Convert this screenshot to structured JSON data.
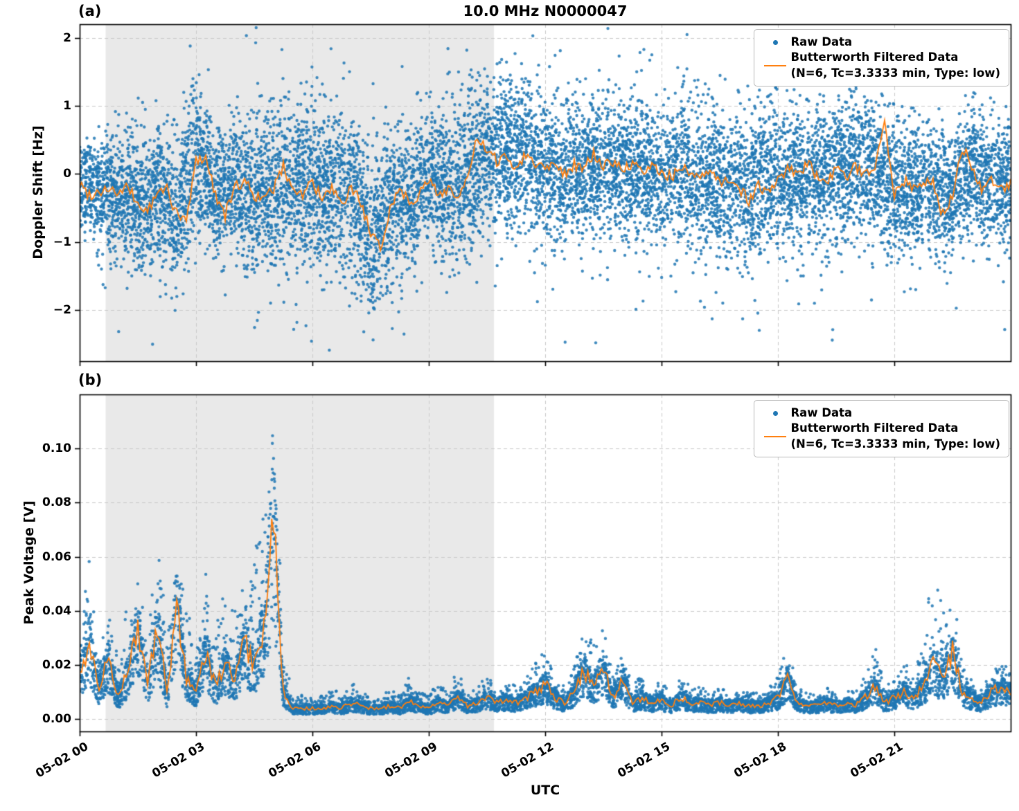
{
  "chart_data": [
    {
      "type": "scatter",
      "panel_label": "(a)",
      "title": "10.0 MHz N0000047",
      "xlabel": "",
      "ylabel": "Doppler Shift [Hz]",
      "xlim_hours": [
        0,
        24
      ],
      "ylim": [
        -2.75,
        2.2
      ],
      "xticks_hours": [
        0,
        3,
        6,
        9,
        12,
        15,
        18,
        21
      ],
      "xtick_labels": [
        "05-02 00",
        "05-02 03",
        "05-02 06",
        "05-02 09",
        "05-02 12",
        "05-02 15",
        "05-02 18",
        "05-02 21"
      ],
      "yticks": [
        2,
        1,
        0,
        -1,
        -2
      ],
      "ytick_labels": [
        "2",
        "1",
        "0",
        "−1",
        "−2"
      ],
      "grid": true,
      "shaded_region_hours": [
        0.67,
        10.68
      ],
      "shade_color": "#e9e9e9",
      "legend": {
        "position": "upper right",
        "raw": "Raw Data",
        "filtered": "Butterworth Filtered Data",
        "filtered_params": "(N=6, Tc=3.3333 min, Type: low)"
      },
      "colors": {
        "raw": "#1f77b4",
        "filtered": "#ff7f0e"
      },
      "series": {
        "raw_scatter_envelope": {
          "t_step_hours": 0.5,
          "mean_hz": [
            -0.15,
            -0.25,
            -0.3,
            -0.45,
            -0.3,
            -0.6,
            0.2,
            -0.3,
            -0.2,
            -0.3,
            -0.2,
            -0.2,
            -0.1,
            -0.2,
            -0.2,
            -0.9,
            -0.5,
            -0.4,
            -0.1,
            -0.2,
            -0.1,
            0.3,
            0.25,
            0.3,
            0.1,
            0,
            0.05,
            0.1,
            0.05,
            0,
            0.05,
            0.1,
            -0.1,
            -0.15,
            -0.2,
            -0.15,
            -0.1,
            -0.05,
            0,
            0.05,
            0.1,
            0.15,
            -0.3,
            -0.2,
            -0.15,
            -0.3,
            0.1,
            -0.1,
            -0.15
          ],
          "spread_hz": [
            0.35,
            0.35,
            0.45,
            0.5,
            0.5,
            0.55,
            0.55,
            0.45,
            0.45,
            0.6,
            0.65,
            0.65,
            0.6,
            0.6,
            0.6,
            0.6,
            0.55,
            0.55,
            0.55,
            0.55,
            0.55,
            0.55,
            0.55,
            0.55,
            0.55,
            0.5,
            0.5,
            0.5,
            0.5,
            0.5,
            0.5,
            0.5,
            0.55,
            0.55,
            0.55,
            0.55,
            0.55,
            0.5,
            0.5,
            0.5,
            0.5,
            0.5,
            0.5,
            0.5,
            0.45,
            0.45,
            0.45,
            0.45,
            0.45
          ]
        },
        "filtered_line": {
          "t_step_hours": 0.25,
          "values_hz": [
            -0.15,
            -0.3,
            -0.25,
            -0.2,
            -0.3,
            -0.2,
            -0.45,
            -0.55,
            -0.3,
            -0.2,
            -0.6,
            -0.7,
            0.2,
            0.25,
            -0.3,
            -0.6,
            -0.2,
            -0.1,
            -0.3,
            -0.4,
            -0.2,
            0.1,
            -0.2,
            -0.3,
            -0.1,
            -0.4,
            -0.2,
            -0.5,
            -0.2,
            -0.4,
            -0.9,
            -1.1,
            -0.5,
            -0.2,
            -0.4,
            -0.3,
            -0.1,
            -0.3,
            -0.2,
            -0.35,
            -0.1,
            0.55,
            0.3,
            0.2,
            0.25,
            0.1,
            0.3,
            0.15,
            0.1,
            0.2,
            0,
            0.15,
            0.05,
            0.3,
            0.1,
            0.2,
            0.05,
            0.15,
            0,
            0.1,
            0.05,
            -0.05,
            0.1,
            0,
            -0.1,
            0.05,
            -0.15,
            -0.05,
            -0.2,
            -0.4,
            -0.15,
            -0.3,
            -0.1,
            0.1,
            -0.05,
            0.15,
            0,
            -0.1,
            0.05,
            -0.05,
            0.1,
            0,
            0.15,
            0.8,
            -0.3,
            -0.1,
            -0.2,
            -0.1,
            -0.15,
            -0.6,
            -0.3,
            0.4,
            0.1,
            -0.2,
            -0.1,
            -0.25,
            -0.15
          ]
        }
      }
    },
    {
      "type": "scatter",
      "panel_label": "(b)",
      "title": "",
      "xlabel": "UTC",
      "ylabel": "Peak Voltage [V]",
      "xlim_hours": [
        0,
        24
      ],
      "ylim": [
        -0.0045,
        0.12
      ],
      "xticks_hours": [
        0,
        3,
        6,
        9,
        12,
        15,
        18,
        21
      ],
      "xtick_labels": [
        "05-02 00",
        "05-02 03",
        "05-02 06",
        "05-02 09",
        "05-02 12",
        "05-02 15",
        "05-02 18",
        "05-02 21"
      ],
      "yticks": [
        0,
        0.02,
        0.04,
        0.06,
        0.08,
        0.1
      ],
      "ytick_labels": [
        "0.00",
        "0.02",
        "0.04",
        "0.06",
        "0.08",
        "0.10"
      ],
      "grid": true,
      "shaded_region_hours": [
        0.67,
        10.68
      ],
      "shade_color": "#e9e9e9",
      "legend": {
        "position": "upper right",
        "raw": "Raw Data",
        "filtered": "Butterworth Filtered Data",
        "filtered_params": "(N=6, Tc=3.3333 min, Type: low)"
      },
      "colors": {
        "raw": "#1f77b4",
        "filtered": "#ff7f0e"
      },
      "series": {
        "filtered_line": {
          "t_step_hours": 0.25,
          "values_v": [
            0.018,
            0.028,
            0.012,
            0.022,
            0.008,
            0.018,
            0.035,
            0.012,
            0.035,
            0.01,
            0.042,
            0.015,
            0.01,
            0.025,
            0.012,
            0.02,
            0.015,
            0.028,
            0.02,
            0.035,
            0.075,
            0.01,
            0.004,
            0.004,
            0.004,
            0.004,
            0.005,
            0.004,
            0.006,
            0.005,
            0.004,
            0.004,
            0.005,
            0.004,
            0.007,
            0.005,
            0.004,
            0.006,
            0.005,
            0.008,
            0.005,
            0.006,
            0.008,
            0.006,
            0.007,
            0.006,
            0.008,
            0.01,
            0.013,
            0.008,
            0.006,
            0.01,
            0.018,
            0.012,
            0.02,
            0.008,
            0.015,
            0.006,
            0.008,
            0.006,
            0.007,
            0.005,
            0.008,
            0.006,
            0.006,
            0.005,
            0.006,
            0.005,
            0.006,
            0.005,
            0.005,
            0.006,
            0.008,
            0.015,
            0.006,
            0.005,
            0.005,
            0.006,
            0.005,
            0.006,
            0.005,
            0.008,
            0.012,
            0.006,
            0.008,
            0.01,
            0.008,
            0.012,
            0.02,
            0.015,
            0.025,
            0.01,
            0.008,
            0.006,
            0.01,
            0.012,
            0.01
          ]
        },
        "raw_scatter_envelope": {
          "t_step_hours": 0.25,
          "peak_v": [
            0.03,
            0.061,
            0.025,
            0.045,
            0.02,
            0.048,
            0.052,
            0.03,
            0.065,
            0.04,
            0.065,
            0.042,
            0.028,
            0.055,
            0.035,
            0.048,
            0.04,
            0.055,
            0.065,
            0.075,
            0.113,
            0.03,
            0.008,
            0.009,
            0.008,
            0.009,
            0.012,
            0.009,
            0.016,
            0.01,
            0.009,
            0.009,
            0.012,
            0.009,
            0.016,
            0.01,
            0.009,
            0.014,
            0.012,
            0.018,
            0.01,
            0.013,
            0.018,
            0.013,
            0.015,
            0.012,
            0.016,
            0.022,
            0.026,
            0.016,
            0.012,
            0.02,
            0.035,
            0.028,
            0.034,
            0.016,
            0.027,
            0.012,
            0.018,
            0.012,
            0.014,
            0.01,
            0.016,
            0.012,
            0.012,
            0.01,
            0.012,
            0.01,
            0.012,
            0.01,
            0.01,
            0.012,
            0.016,
            0.029,
            0.012,
            0.01,
            0.01,
            0.012,
            0.01,
            0.012,
            0.01,
            0.016,
            0.029,
            0.012,
            0.016,
            0.022,
            0.016,
            0.03,
            0.058,
            0.04,
            0.057,
            0.02,
            0.015,
            0.012,
            0.018,
            0.022,
            0.018
          ]
        }
      }
    }
  ]
}
